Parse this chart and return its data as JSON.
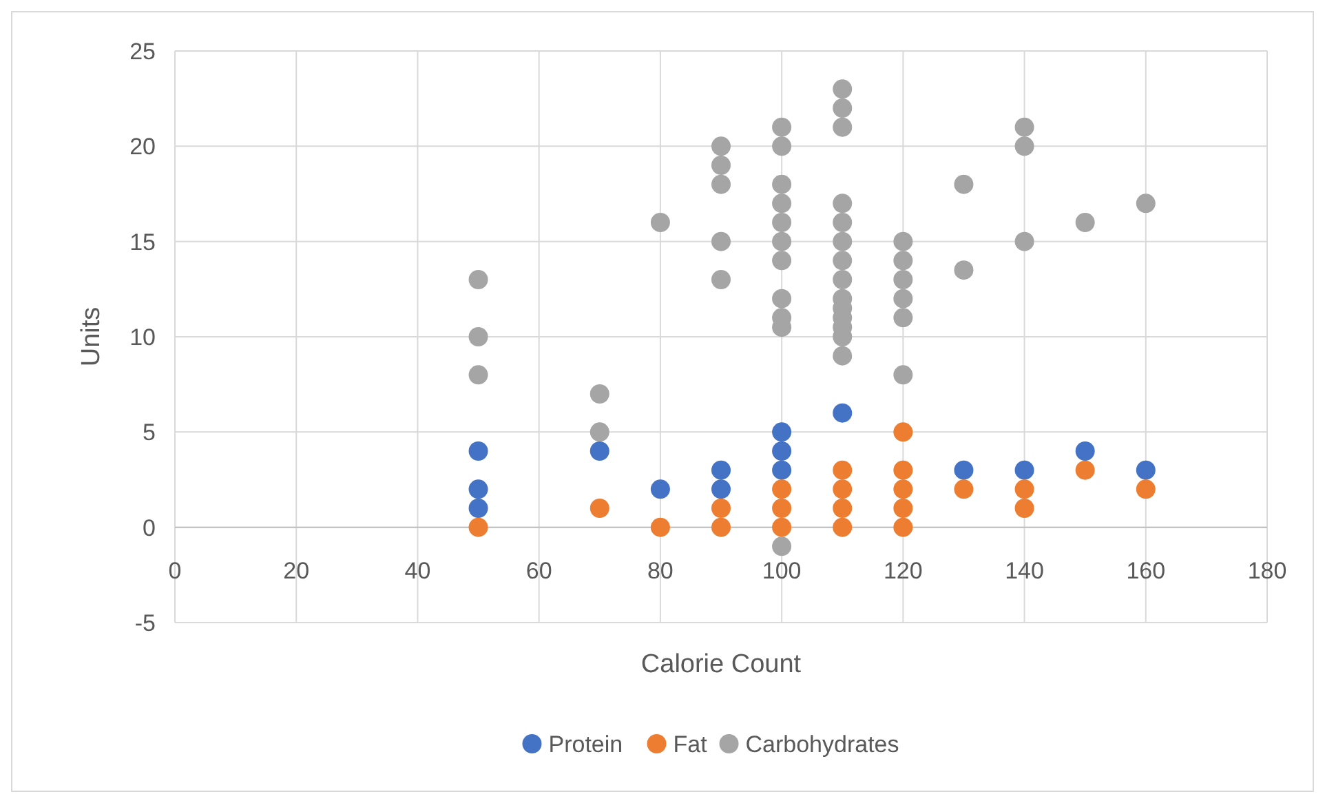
{
  "chart_data": {
    "type": "scatter",
    "xlabel": "Calorie Count",
    "ylabel": "Units",
    "xlim": [
      0,
      180
    ],
    "xticks": [
      0,
      20,
      40,
      60,
      80,
      100,
      120,
      140,
      160,
      180
    ],
    "ylim": [
      -5,
      25
    ],
    "yticks": [
      -5,
      0,
      5,
      10,
      15,
      20,
      25
    ],
    "grid": true,
    "legend": "bottom",
    "marker": "circle",
    "series": [
      {
        "name": "Protein",
        "color": "#4472c4",
        "x": [
          50,
          50,
          50,
          70,
          80,
          90,
          90,
          100,
          100,
          100,
          110,
          130,
          140,
          150,
          160
        ],
        "values": [
          4,
          2,
          1,
          4,
          2,
          3,
          2,
          5,
          4,
          3,
          6,
          3,
          3,
          4,
          3
        ]
      },
      {
        "name": "Fat",
        "color": "#ed7d31",
        "x": [
          50,
          70,
          80,
          90,
          90,
          100,
          100,
          100,
          110,
          110,
          110,
          110,
          120,
          120,
          120,
          120,
          120,
          130,
          140,
          140,
          150,
          160
        ],
        "values": [
          0,
          1,
          0,
          1,
          0,
          2,
          1,
          0,
          3,
          2,
          1,
          0,
          5,
          3,
          2,
          1,
          0,
          2,
          2,
          1,
          3,
          2
        ]
      },
      {
        "name": "Carbohydrates",
        "color": "#a5a5a5",
        "x": [
          50,
          50,
          50,
          70,
          70,
          80,
          90,
          90,
          90,
          90,
          90,
          100,
          100,
          100,
          100,
          100,
          100,
          100,
          100,
          100,
          100,
          100,
          110,
          110,
          110,
          110,
          110,
          110,
          110,
          110,
          110,
          110,
          110,
          110,
          110,
          110,
          120,
          120,
          120,
          120,
          120,
          120,
          130,
          130,
          140,
          140,
          140,
          150,
          160
        ],
        "values": [
          13,
          10,
          8,
          7,
          5,
          16,
          20,
          19,
          18,
          15,
          13,
          21,
          20,
          18,
          17,
          16,
          15,
          14,
          12,
          11,
          10.5,
          -1,
          23,
          22,
          21,
          17,
          16,
          15,
          14,
          13,
          12,
          11.5,
          11,
          10.5,
          10,
          9,
          15,
          14,
          13,
          12,
          11,
          8,
          18,
          13.5,
          21,
          20,
          15,
          16,
          17
        ]
      }
    ]
  }
}
